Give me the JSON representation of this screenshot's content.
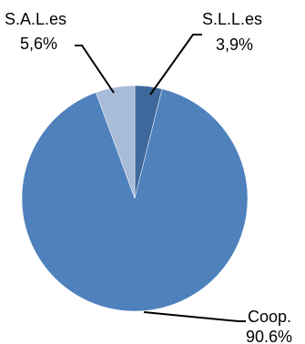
{
  "chart_data": {
    "type": "pie",
    "slices": [
      {
        "label": "S.L.L.es",
        "value_text": "3,9%",
        "value": 3.9,
        "color": "#3f699d"
      },
      {
        "label": "Coop.",
        "value_text": "90.6%",
        "value": 90.6,
        "color": "#4f81bd"
      },
      {
        "label": "S.A.L.es",
        "value_text": "5,6%",
        "value": 5.6,
        "color": "#a8bbd9"
      }
    ]
  }
}
